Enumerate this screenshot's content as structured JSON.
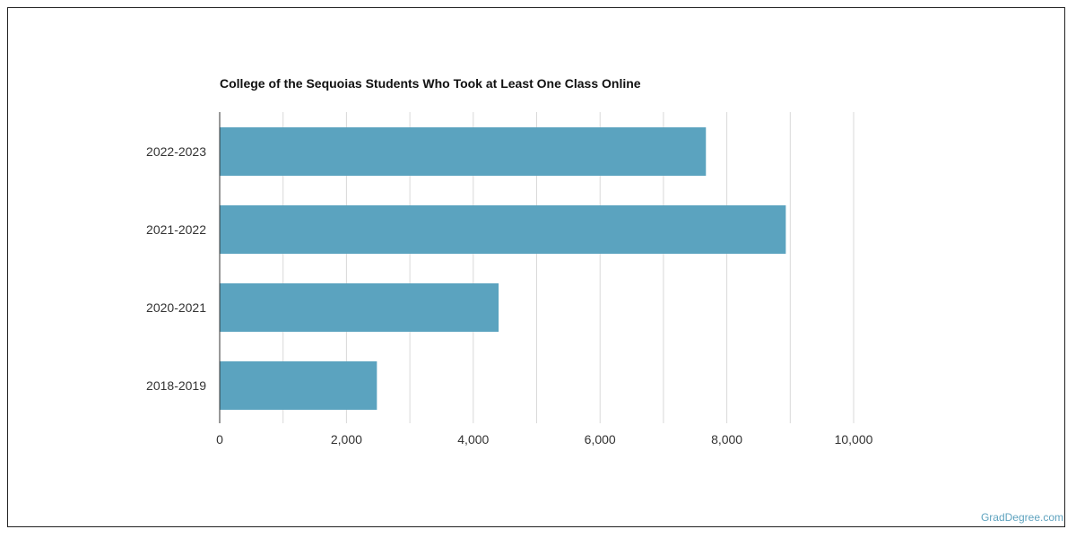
{
  "chart_data": {
    "type": "bar",
    "orientation": "horizontal",
    "title": "College of the Sequoias Students Who Took at Least One Class Online",
    "categories": [
      "2022-2023",
      "2021-2022",
      "2020-2021",
      "2018-2019"
    ],
    "values": [
      7670,
      8930,
      4400,
      2480
    ],
    "xlim": [
      0,
      10000
    ],
    "xticks": [
      "0",
      "2,000",
      "4,000",
      "6,000",
      "8,000",
      "10,000"
    ],
    "xtick_values": [
      0,
      2000,
      4000,
      6000,
      8000,
      10000
    ],
    "grid": true,
    "bar_color": "#5ba3bf"
  },
  "watermark": "GradDegree.com"
}
